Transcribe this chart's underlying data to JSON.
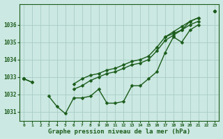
{
  "xlabel": "Graphe pression niveau de la mer (hPa)",
  "background_color": "#cce8e2",
  "line_color": "#1a5c1a",
  "grid_color": "#a8ccc6",
  "hours": [
    0,
    1,
    2,
    3,
    4,
    5,
    6,
    7,
    8,
    9,
    10,
    11,
    12,
    13,
    14,
    15,
    16,
    17,
    18,
    19,
    20,
    21,
    22,
    23
  ],
  "line_main": [
    1032.9,
    1032.7,
    null,
    1031.9,
    1031.3,
    1030.9,
    1031.8,
    1031.8,
    1031.9,
    1032.3,
    1031.5,
    1031.5,
    1031.6,
    1032.5,
    1032.5,
    1032.9,
    1033.3,
    1034.4,
    1035.3,
    1035.0,
    1035.7,
    1036.0,
    null,
    1036.8
  ],
  "line_A": [
    1032.9,
    1032.7,
    null,
    null,
    null,
    null,
    1032.3,
    1032.5,
    1032.8,
    1033.0,
    1033.2,
    1033.3,
    1033.5,
    1033.7,
    1033.8,
    1034.0,
    1034.5,
    1035.1,
    1035.4,
    1035.7,
    1036.0,
    1036.2,
    null,
    1036.8
  ],
  "line_B": [
    1032.9,
    null,
    null,
    null,
    null,
    null,
    1032.6,
    1032.9,
    1033.1,
    1033.2,
    1033.4,
    1033.5,
    1033.7,
    1033.9,
    1034.0,
    1034.2,
    1034.7,
    1035.3,
    1035.6,
    1035.9,
    1036.2,
    1036.4,
    null,
    1036.8
  ],
  "line_C": [
    1032.9,
    null,
    null,
    null,
    null,
    null,
    null,
    null,
    null,
    null,
    null,
    null,
    null,
    null,
    null,
    null,
    null,
    1035.3,
    1035.5,
    1035.7,
    1036.2,
    1036.4,
    null,
    1036.8
  ],
  "ylim_min": 1030.5,
  "ylim_max": 1037.2,
  "yticks": [
    1031,
    1032,
    1033,
    1034,
    1035,
    1036
  ],
  "marker_size": 2.5,
  "line_width": 1.0
}
